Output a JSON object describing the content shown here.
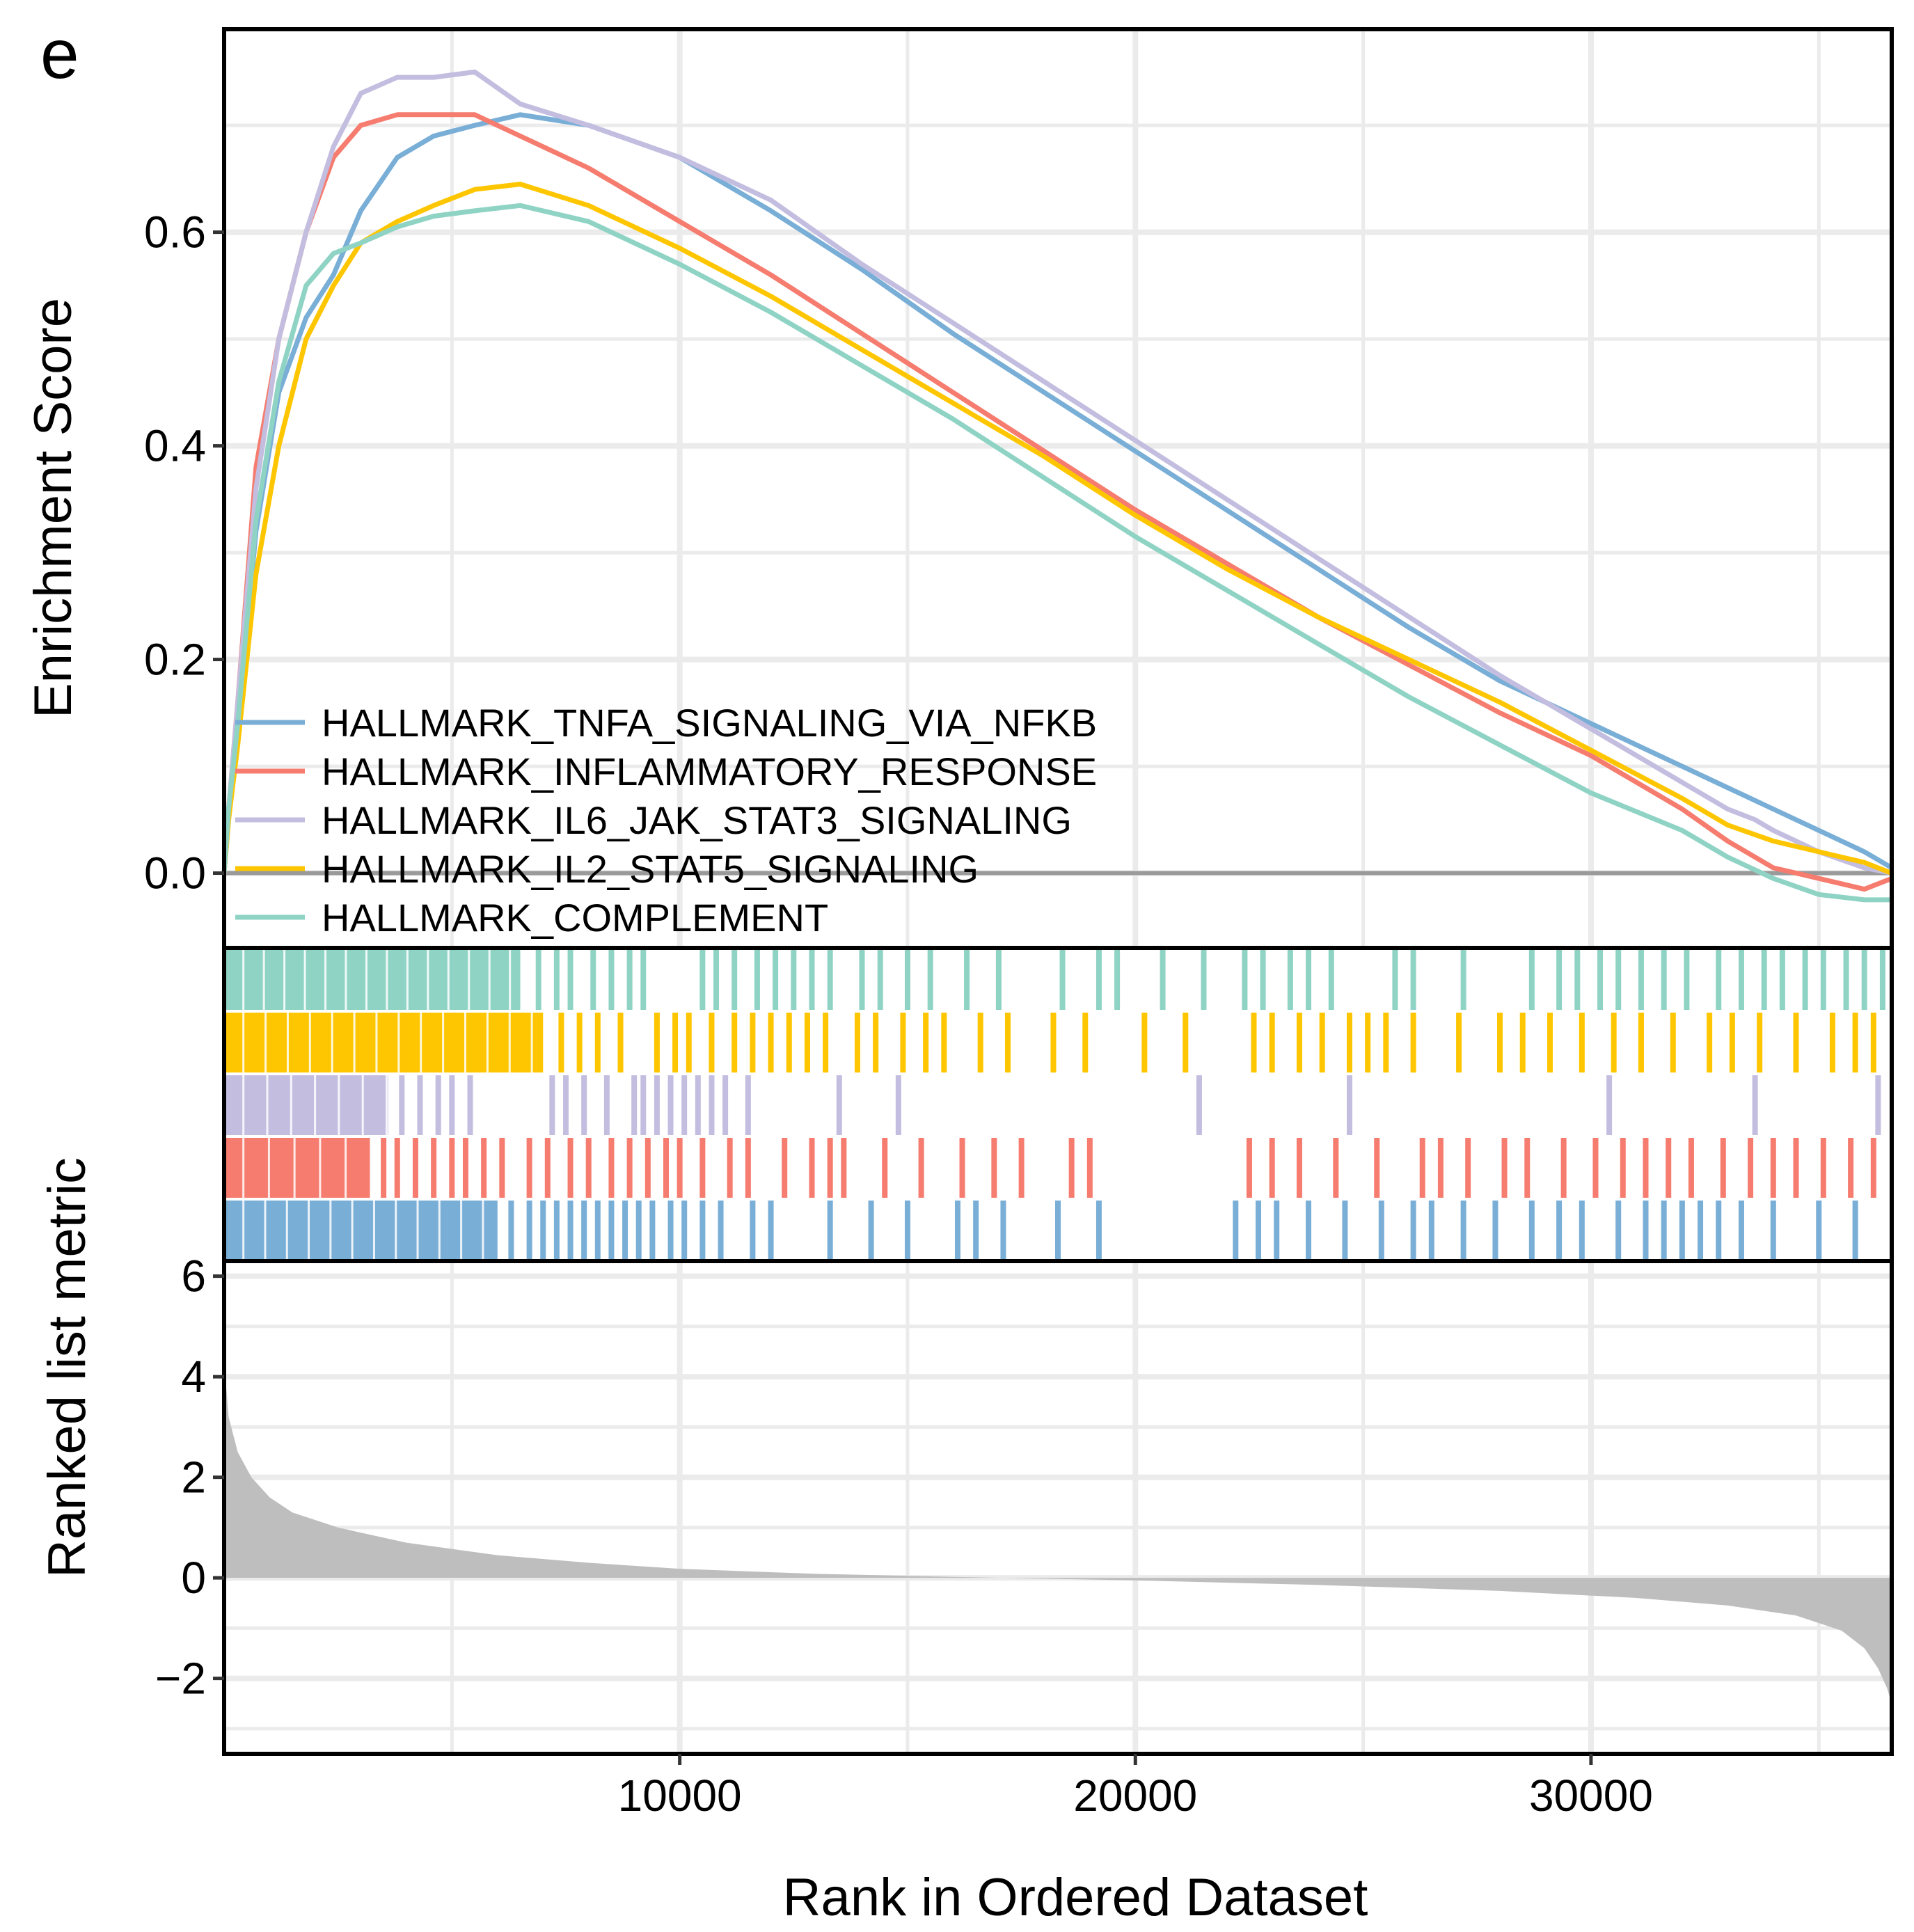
{
  "panel_label": "e",
  "colors": {
    "grid": "#ebebeb",
    "zero_line": "#9a9a9a",
    "metric_fill": "#bebebe",
    "frame": "#000000"
  },
  "chart_data": {
    "type": "line",
    "title": "",
    "xlabel": "Rank in Ordered Dataset",
    "x_ticks": [
      10000,
      20000,
      30000
    ],
    "xlim": [
      0,
      36600
    ],
    "legend_position": "bottom-left",
    "enrichment": {
      "ylabel": "Enrichment Score",
      "ylim": [
        -0.07,
        0.79
      ],
      "y_ticks": [
        0.0,
        0.2,
        0.4,
        0.6
      ],
      "y_tick_labels": [
        "0.0",
        "0.2",
        "0.4",
        "0.6"
      ],
      "series": [
        {
          "name": "HALLMARK_TNFA_SIGNALING_VIA_NFKB",
          "color": "#79aed6",
          "x": [
            0,
            100,
            300,
            700,
            1200,
            1800,
            2400,
            3000,
            3800,
            4600,
            5500,
            6500,
            8000,
            10000,
            12000,
            14000,
            16000,
            18000,
            20000,
            22000,
            24000,
            26000,
            28000,
            30000,
            32000,
            33000,
            34000,
            35000,
            36000,
            36600
          ],
          "y": [
            0.0,
            0.05,
            0.14,
            0.32,
            0.45,
            0.52,
            0.56,
            0.62,
            0.67,
            0.69,
            0.7,
            0.71,
            0.7,
            0.67,
            0.62,
            0.565,
            0.505,
            0.45,
            0.395,
            0.34,
            0.285,
            0.23,
            0.18,
            0.14,
            0.1,
            0.08,
            0.06,
            0.04,
            0.02,
            0.005
          ]
        },
        {
          "name": "HALLMARK_INFLAMMATORY_RESPONSE",
          "color": "#f57c6e",
          "x": [
            0,
            100,
            300,
            700,
            1200,
            1800,
            2400,
            3000,
            3800,
            4600,
            5500,
            6500,
            8000,
            10000,
            12000,
            14000,
            16000,
            18000,
            20000,
            22000,
            24000,
            26000,
            28000,
            30000,
            32000,
            33000,
            34000,
            35000,
            36000,
            36600
          ],
          "y": [
            0.0,
            0.06,
            0.16,
            0.38,
            0.5,
            0.6,
            0.67,
            0.7,
            0.71,
            0.71,
            0.71,
            0.69,
            0.66,
            0.61,
            0.56,
            0.505,
            0.45,
            0.395,
            0.34,
            0.29,
            0.24,
            0.195,
            0.15,
            0.11,
            0.06,
            0.03,
            0.005,
            -0.005,
            -0.015,
            -0.005
          ]
        },
        {
          "name": "HALLMARK_IL6_JAK_STAT3_SIGNALING",
          "color": "#c3bde0",
          "x": [
            0,
            100,
            300,
            700,
            1200,
            1800,
            2400,
            3000,
            3800,
            4600,
            5500,
            6500,
            8000,
            10000,
            12000,
            14000,
            16000,
            18000,
            20000,
            22000,
            24000,
            26000,
            28000,
            30000,
            32000,
            33000,
            33600,
            34000,
            35000,
            36000,
            36600
          ],
          "y": [
            0.0,
            0.06,
            0.16,
            0.36,
            0.5,
            0.6,
            0.68,
            0.73,
            0.745,
            0.745,
            0.75,
            0.72,
            0.7,
            0.67,
            0.63,
            0.57,
            0.515,
            0.46,
            0.405,
            0.35,
            0.295,
            0.24,
            0.185,
            0.135,
            0.085,
            0.06,
            0.05,
            0.04,
            0.02,
            0.005,
            0.0
          ]
        },
        {
          "name": "HALLMARK_IL2_STAT5_SIGNALING",
          "color": "#fec600",
          "x": [
            0,
            100,
            300,
            700,
            1200,
            1800,
            2400,
            3000,
            3800,
            4600,
            5500,
            6500,
            8000,
            10000,
            12000,
            14000,
            16000,
            18000,
            20000,
            22000,
            24000,
            26000,
            28000,
            30000,
            32000,
            33000,
            34000,
            35000,
            36000,
            36600
          ],
          "y": [
            0.0,
            0.05,
            0.12,
            0.28,
            0.4,
            0.5,
            0.55,
            0.59,
            0.61,
            0.625,
            0.64,
            0.645,
            0.625,
            0.585,
            0.54,
            0.49,
            0.44,
            0.39,
            0.335,
            0.285,
            0.24,
            0.2,
            0.16,
            0.115,
            0.07,
            0.045,
            0.03,
            0.02,
            0.01,
            0.0
          ]
        },
        {
          "name": "HALLMARK_COMPLEMENT",
          "color": "#8fd3c5",
          "x": [
            0,
            100,
            300,
            700,
            1200,
            1800,
            2400,
            3000,
            3800,
            4600,
            5500,
            6500,
            8000,
            10000,
            12000,
            14000,
            16000,
            18000,
            20000,
            22000,
            24000,
            26000,
            28000,
            30000,
            32000,
            33000,
            34000,
            35000,
            36000,
            36600
          ],
          "y": [
            0.0,
            0.06,
            0.14,
            0.33,
            0.46,
            0.55,
            0.58,
            0.59,
            0.605,
            0.615,
            0.62,
            0.625,
            0.61,
            0.57,
            0.525,
            0.475,
            0.425,
            0.37,
            0.315,
            0.265,
            0.215,
            0.165,
            0.12,
            0.075,
            0.04,
            0.015,
            -0.005,
            -0.02,
            -0.025,
            -0.025
          ]
        }
      ]
    },
    "hit_rows": [
      {
        "name": "HALLMARK_COMPLEMENT",
        "color": "#8fd3c5",
        "dense_end": 6500,
        "hits": [
          6900,
          7300,
          7600,
          8100,
          8500,
          8900,
          9200,
          10500,
          10800,
          11200,
          11700,
          12100,
          12500,
          12900,
          13300,
          14000,
          14400,
          15000,
          15500,
          16300,
          17000,
          18400,
          19200,
          19600,
          20600,
          21500,
          22400,
          22800,
          23400,
          23800,
          24300,
          25700,
          26100,
          27200,
          28700,
          29300,
          29700,
          30200,
          30600,
          31100,
          31600,
          32100,
          32800,
          33300,
          33800,
          34200,
          34700,
          35100,
          35600,
          36000,
          36400
        ]
      },
      {
        "name": "HALLMARK_IL2_STAT5_SIGNALING",
        "color": "#fec600",
        "dense_end": 7000,
        "hits": [
          7400,
          7800,
          8200,
          8700,
          9500,
          9900,
          10200,
          10700,
          11200,
          11600,
          12000,
          12400,
          12800,
          13200,
          13900,
          14300,
          14900,
          15400,
          15800,
          16600,
          17200,
          18200,
          18900,
          20200,
          21100,
          22600,
          23000,
          23600,
          24100,
          24700,
          25100,
          25500,
          26100,
          27100,
          28000,
          28500,
          29100,
          29800,
          30500,
          31100,
          31800,
          32600,
          33100,
          33700,
          34500,
          35300,
          35800,
          36200
        ]
      },
      {
        "name": "HALLMARK_IL6_JAK_STAT3_SIGNALING",
        "color": "#c3bde0",
        "dense_end": 3600,
        "hits": [
          3900,
          4300,
          4700,
          5000,
          5400,
          7200,
          7500,
          7900,
          8400,
          9000,
          9200,
          9500,
          9800,
          10100,
          10400,
          10700,
          11000,
          11500,
          13500,
          14800,
          21400,
          24700,
          30400,
          33600,
          36300
        ]
      },
      {
        "name": "HALLMARK_INFLAMMATORY_RESPONSE",
        "color": "#f57c6e",
        "dense_end": 3200,
        "hits": [
          3500,
          3800,
          4200,
          4600,
          5000,
          5300,
          5700,
          6100,
          6700,
          7100,
          7600,
          8000,
          8500,
          8900,
          9300,
          9700,
          10000,
          10500,
          11100,
          11500,
          12300,
          12900,
          13300,
          13600,
          14500,
          15300,
          16200,
          16900,
          17500,
          18600,
          19000,
          22500,
          23000,
          23600,
          24400,
          25300,
          26300,
          26700,
          27300,
          28100,
          28600,
          29400,
          30100,
          30700,
          31200,
          31700,
          32200,
          32900,
          33500,
          34000,
          34500,
          35100,
          35700,
          36200
        ]
      },
      {
        "name": "HALLMARK_TNFA_SIGNALING_VIA_NFKB",
        "color": "#79aed6",
        "dense_end": 6000,
        "hits": [
          6300,
          6700,
          7000,
          7300,
          7600,
          7900,
          8200,
          8500,
          8800,
          9100,
          9400,
          9800,
          10100,
          10500,
          10900,
          11600,
          12000,
          13300,
          14200,
          15000,
          16100,
          16500,
          17100,
          18300,
          19200,
          22200,
          22700,
          23100,
          23800,
          24600,
          25400,
          26100,
          26500,
          27200,
          27900,
          28700,
          29300,
          29800,
          30600,
          31200,
          31600,
          32000,
          32400,
          32800,
          33300,
          34000,
          35000,
          35800
        ]
      }
    ],
    "ranked_metric": {
      "ylabel": "Ranked list metric",
      "ylim": [
        -3.5,
        6.3
      ],
      "y_ticks": [
        -2,
        0,
        2,
        4,
        6
      ],
      "y_tick_labels": [
        "−2",
        "0",
        "2",
        "4",
        "6"
      ],
      "x": [
        0,
        100,
        300,
        600,
        1000,
        1500,
        2500,
        4000,
        6000,
        8000,
        10000,
        13000,
        16000,
        20000,
        24000,
        28000,
        31000,
        33000,
        34500,
        35500,
        36000,
        36300,
        36500,
        36600
      ],
      "y": [
        4.3,
        3.2,
        2.5,
        2.0,
        1.6,
        1.3,
        1.0,
        0.7,
        0.45,
        0.3,
        0.18,
        0.08,
        0.02,
        -0.05,
        -0.14,
        -0.26,
        -0.4,
        -0.55,
        -0.75,
        -1.05,
        -1.4,
        -1.8,
        -2.2,
        -2.5
      ]
    }
  }
}
